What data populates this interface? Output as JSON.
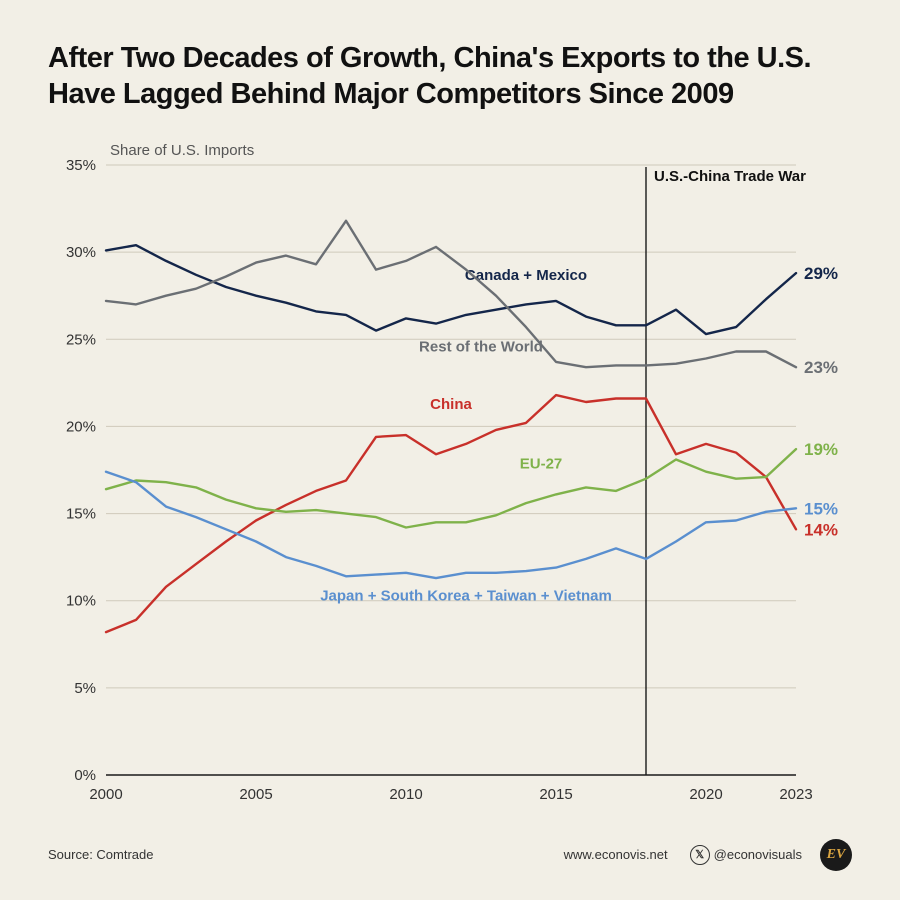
{
  "title": "After Two Decades of Growth, China's Exports to the U.S. Have Lagged Behind Major Competitors Since 2009",
  "chart": {
    "type": "line",
    "subtitle": "Share of U.S. Imports",
    "background_color": "#f2efe6",
    "grid_color": "#cfcabb",
    "axis_color": "#1a1a1a",
    "tick_font_size": 15,
    "line_width": 2.4,
    "x": {
      "min": 2000,
      "max": 2023,
      "ticks": [
        2000,
        2005,
        2010,
        2015,
        2020,
        2023
      ]
    },
    "y": {
      "min": 0,
      "max": 35,
      "ticks": [
        0,
        5,
        10,
        15,
        20,
        25,
        30,
        35
      ],
      "suffix": "%"
    },
    "annotation": {
      "label": "U.S.-China Trade War",
      "year": 2018,
      "line_color": "#1a1a1a"
    },
    "series": [
      {
        "name": "Canada + Mexico",
        "color": "#14264a",
        "label_pos": {
          "year": 2014.0,
          "pct": 28.4
        },
        "end_label": "29%",
        "values": [
          [
            2000,
            30.1
          ],
          [
            2001,
            30.4
          ],
          [
            2002,
            29.5
          ],
          [
            2003,
            28.7
          ],
          [
            2004,
            28.0
          ],
          [
            2005,
            27.5
          ],
          [
            2006,
            27.1
          ],
          [
            2007,
            26.6
          ],
          [
            2008,
            26.4
          ],
          [
            2009,
            25.5
          ],
          [
            2010,
            26.2
          ],
          [
            2011,
            25.9
          ],
          [
            2012,
            26.4
          ],
          [
            2013,
            26.7
          ],
          [
            2014,
            27.0
          ],
          [
            2015,
            27.2
          ],
          [
            2016,
            26.3
          ],
          [
            2017,
            25.8
          ],
          [
            2018,
            25.8
          ],
          [
            2019,
            26.7
          ],
          [
            2020,
            25.3
          ],
          [
            2021,
            25.7
          ],
          [
            2022,
            27.3
          ],
          [
            2023,
            28.8
          ]
        ]
      },
      {
        "name": "Rest of the World",
        "color": "#6b6f74",
        "label_pos": {
          "year": 2012.5,
          "pct": 24.3
        },
        "end_label": "23%",
        "values": [
          [
            2000,
            27.2
          ],
          [
            2001,
            27.0
          ],
          [
            2002,
            27.5
          ],
          [
            2003,
            27.9
          ],
          [
            2004,
            28.6
          ],
          [
            2005,
            29.4
          ],
          [
            2006,
            29.8
          ],
          [
            2007,
            29.3
          ],
          [
            2008,
            31.8
          ],
          [
            2009,
            29.0
          ],
          [
            2010,
            29.5
          ],
          [
            2011,
            30.3
          ],
          [
            2012,
            29.0
          ],
          [
            2013,
            27.5
          ],
          [
            2014,
            25.7
          ],
          [
            2015,
            23.7
          ],
          [
            2016,
            23.4
          ],
          [
            2017,
            23.5
          ],
          [
            2018,
            23.5
          ],
          [
            2019,
            23.6
          ],
          [
            2020,
            23.9
          ],
          [
            2021,
            24.3
          ],
          [
            2022,
            24.3
          ],
          [
            2023,
            23.4
          ]
        ]
      },
      {
        "name": "China",
        "color": "#c8302a",
        "label_pos": {
          "year": 2011.5,
          "pct": 21.0
        },
        "end_label": "14%",
        "values": [
          [
            2000,
            8.2
          ],
          [
            2001,
            8.9
          ],
          [
            2002,
            10.8
          ],
          [
            2003,
            12.1
          ],
          [
            2004,
            13.4
          ],
          [
            2005,
            14.6
          ],
          [
            2006,
            15.5
          ],
          [
            2007,
            16.3
          ],
          [
            2008,
            16.9
          ],
          [
            2009,
            19.4
          ],
          [
            2010,
            19.5
          ],
          [
            2011,
            18.4
          ],
          [
            2012,
            19.0
          ],
          [
            2013,
            19.8
          ],
          [
            2014,
            20.2
          ],
          [
            2015,
            21.8
          ],
          [
            2016,
            21.4
          ],
          [
            2017,
            21.6
          ],
          [
            2018,
            21.6
          ],
          [
            2019,
            18.4
          ],
          [
            2020,
            19.0
          ],
          [
            2021,
            18.5
          ],
          [
            2022,
            17.1
          ],
          [
            2023,
            14.1
          ]
        ]
      },
      {
        "name": "EU-27",
        "color": "#7fb24a",
        "label_pos": {
          "year": 2014.5,
          "pct": 17.6
        },
        "end_label": "19%",
        "values": [
          [
            2000,
            16.4
          ],
          [
            2001,
            16.9
          ],
          [
            2002,
            16.8
          ],
          [
            2003,
            16.5
          ],
          [
            2004,
            15.8
          ],
          [
            2005,
            15.3
          ],
          [
            2006,
            15.1
          ],
          [
            2007,
            15.2
          ],
          [
            2008,
            15.0
          ],
          [
            2009,
            14.8
          ],
          [
            2010,
            14.2
          ],
          [
            2011,
            14.5
          ],
          [
            2012,
            14.5
          ],
          [
            2013,
            14.9
          ],
          [
            2014,
            15.6
          ],
          [
            2015,
            16.1
          ],
          [
            2016,
            16.5
          ],
          [
            2017,
            16.3
          ],
          [
            2018,
            17.0
          ],
          [
            2019,
            18.1
          ],
          [
            2020,
            17.4
          ],
          [
            2021,
            17.0
          ],
          [
            2022,
            17.1
          ],
          [
            2023,
            18.7
          ]
        ]
      },
      {
        "name": "Japan + South Korea + Taiwan + Vietnam",
        "color": "#5a8fcf",
        "label_pos": {
          "year": 2012.0,
          "pct": 10.0
        },
        "end_label": "15%",
        "values": [
          [
            2000,
            17.4
          ],
          [
            2001,
            16.8
          ],
          [
            2002,
            15.4
          ],
          [
            2003,
            14.8
          ],
          [
            2004,
            14.1
          ],
          [
            2005,
            13.4
          ],
          [
            2006,
            12.5
          ],
          [
            2007,
            12.0
          ],
          [
            2008,
            11.4
          ],
          [
            2009,
            11.5
          ],
          [
            2010,
            11.6
          ],
          [
            2011,
            11.3
          ],
          [
            2012,
            11.6
          ],
          [
            2013,
            11.6
          ],
          [
            2014,
            11.7
          ],
          [
            2015,
            11.9
          ],
          [
            2016,
            12.4
          ],
          [
            2017,
            13.0
          ],
          [
            2018,
            12.4
          ],
          [
            2019,
            13.4
          ],
          [
            2020,
            14.5
          ],
          [
            2021,
            14.6
          ],
          [
            2022,
            15.1
          ],
          [
            2023,
            15.3
          ]
        ]
      }
    ]
  },
  "footer": {
    "source": "Source: Comtrade",
    "site": "www.econovis.net",
    "handle": "@econovisuals",
    "badge": "EV"
  }
}
